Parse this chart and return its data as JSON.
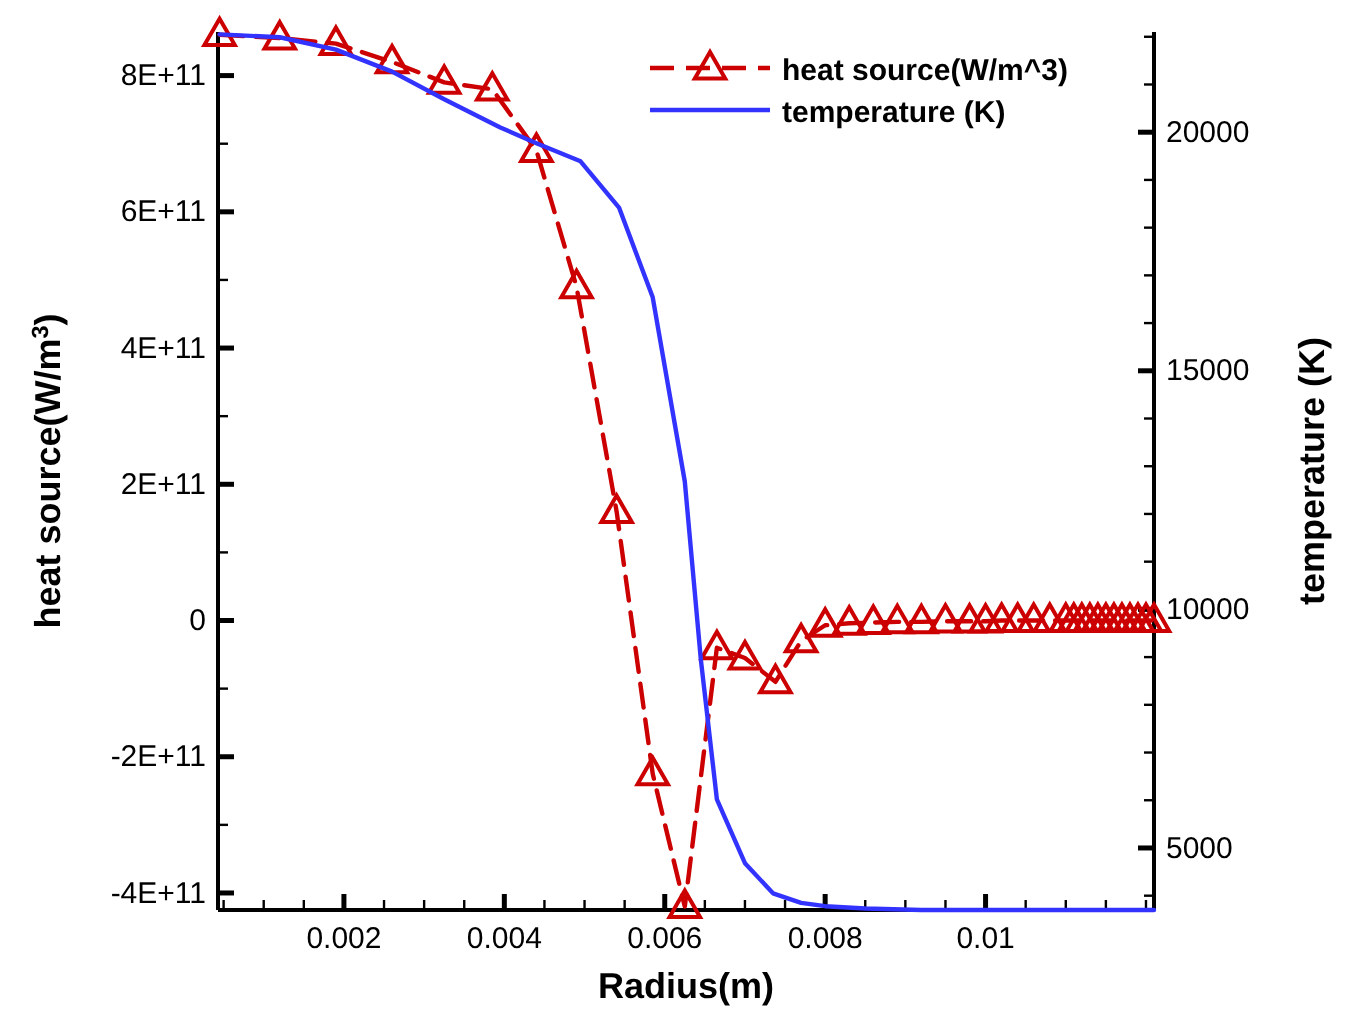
{
  "chart_data": {
    "type": "line",
    "xlabel": "Radius(m)",
    "ylabel": "heat source(W/m$^{3}$)",
    "y2label": "temperature (K)",
    "xlim": [
      0.00043,
      0.0121
    ],
    "ylim": [
      -425000000000.0,
      864000000000.0
    ],
    "y2lim": [
      3700,
      22100
    ],
    "xticks": [
      {
        "value": 0.0005,
        "label": null
      },
      {
        "value": 0.001,
        "label": null
      },
      {
        "value": 0.0015,
        "label": null
      },
      0.002,
      {
        "value": 0.0025,
        "label": null
      },
      {
        "value": 0.003,
        "label": null
      },
      {
        "value": 0.0035,
        "label": null
      },
      0.004,
      {
        "value": 0.0045,
        "label": null
      },
      {
        "value": 0.005,
        "label": null
      },
      {
        "value": 0.0055,
        "label": null
      },
      0.006,
      {
        "value": 0.0065,
        "label": null
      },
      {
        "value": 0.007,
        "label": null
      },
      {
        "value": 0.0075,
        "label": null
      },
      0.008,
      {
        "value": 0.0085,
        "label": null
      },
      {
        "value": 0.009,
        "label": null
      },
      {
        "value": 0.0095,
        "label": null
      },
      0.01,
      {
        "value": 0.0105,
        "label": null
      },
      {
        "value": 0.011,
        "label": null
      },
      {
        "value": 0.0115,
        "label": null
      },
      {
        "value": 0.012,
        "label": null
      }
    ],
    "yticks": [
      {
        "value": -400000000000.0,
        "label": "-4E+11"
      },
      {
        "value": -300000000000.0,
        "label": null
      },
      {
        "value": -200000000000.0,
        "label": "-2E+11"
      },
      {
        "value": -100000000000.0,
        "label": null
      },
      0,
      {
        "value": 100000000000.0,
        "label": null
      },
      {
        "value": 200000000000.0,
        "label": "2E+11"
      },
      {
        "value": 300000000000.0,
        "label": null
      },
      {
        "value": 400000000000.0,
        "label": "4E+11"
      },
      {
        "value": 500000000000.0,
        "label": null
      },
      {
        "value": 600000000000.0,
        "label": "6E+11"
      },
      {
        "value": 700000000000.0,
        "label": null
      },
      {
        "value": 800000000000.0,
        "label": "8E+11"
      }
    ],
    "y2ticks": [
      {
        "value": 4000,
        "label": null
      },
      5000,
      {
        "value": 6000,
        "label": null
      },
      {
        "value": 7000,
        "label": null
      },
      {
        "value": 8000,
        "label": null
      },
      {
        "value": 9000,
        "label": null
      },
      10000,
      {
        "value": 11000,
        "label": null
      },
      {
        "value": 12000,
        "label": null
      },
      {
        "value": 13000,
        "label": null
      },
      {
        "value": 14000,
        "label": null
      },
      15000,
      {
        "value": 16000,
        "label": null
      },
      {
        "value": 17000,
        "label": null
      },
      {
        "value": 18000,
        "label": null
      },
      {
        "value": 19000,
        "label": null
      },
      20000,
      {
        "value": 21000,
        "label": null
      },
      {
        "value": 22000,
        "label": null
      }
    ],
    "legend": "top right",
    "grid": false,
    "series": [
      {
        "name": "heat source(W/m^3)",
        "color": "#cc0000",
        "marker": "triangle",
        "line_style": "dashed",
        "x": [
          0.00045,
          0.0012,
          0.0019,
          0.0026,
          0.00325,
          0.00385,
          0.0044,
          0.0049,
          0.0054,
          0.00585,
          0.00625,
          0.00665,
          0.007,
          0.00738,
          0.0077,
          0.008,
          0.0083,
          0.0086,
          0.0089,
          0.0092,
          0.0095,
          0.0098,
          0.01,
          0.0102,
          0.0104,
          0.0106,
          0.0108,
          0.011,
          0.0111,
          0.0112,
          0.0113,
          0.0114,
          0.0115,
          0.0116,
          0.0117,
          0.0118,
          0.0119,
          0.012,
          0.0121
        ],
        "values": [
          860000000000.0,
          855000000000.0,
          847000000000.0,
          820000000000.0,
          790000000000.0,
          780000000000.0,
          690000000000.0,
          490000000000.0,
          160000000000.0,
          -225000000000.0,
          -420000000000.0,
          -40000000000.0,
          -55000000000.0,
          -90000000000.0,
          -30000000000.0,
          -7000000000.0,
          -4000000000.0,
          -3000000000.0,
          -2000000000.0,
          -2000000000.0,
          -1000000000.0,
          -1000000000.0,
          -1000000000.0,
          0,
          0,
          0,
          0,
          0,
          0,
          0,
          0,
          0,
          0,
          0,
          0,
          0,
          0,
          0,
          0
        ]
      },
      {
        "name": "temperature (K)",
        "color": "#3333ff",
        "marker": "none",
        "line_style": "solid",
        "axis": "y2",
        "x": [
          0.00045,
          0.0012,
          0.0019,
          0.0026,
          0.00325,
          0.00395,
          0.0044,
          0.00495,
          0.00543,
          0.00585,
          0.00625,
          0.00645,
          0.00665,
          0.007,
          0.00735,
          0.0077,
          0.008,
          0.0085,
          0.0092,
          0.0121
        ],
        "values": [
          22050,
          21990,
          21730,
          21270,
          20690,
          20100,
          19770,
          19390,
          18420,
          16540,
          12680,
          8950,
          6020,
          4680,
          4050,
          3850,
          3780,
          3730,
          3700,
          3700
        ]
      }
    ]
  }
}
